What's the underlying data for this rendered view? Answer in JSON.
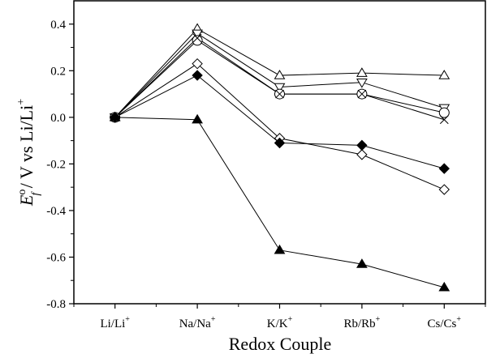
{
  "chart_data": {
    "type": "line",
    "categories": [
      "Li/Li+",
      "Na/Na+",
      "K/K+",
      "Rb/Rb+",
      "Cs/Cs+"
    ],
    "category_labels": [
      {
        "base": "Li/Li",
        "sup": "+"
      },
      {
        "base": "Na/Na",
        "sup": "+"
      },
      {
        "base": "K/K",
        "sup": "+"
      },
      {
        "base": "Rb/Rb",
        "sup": "+"
      },
      {
        "base": "Cs/Cs",
        "sup": "+"
      }
    ],
    "xlabel": "Redox Couple",
    "ylabel": {
      "E": "E",
      "sup": "o",
      "sub": "f",
      "rest": " / V vs Li/Li",
      "rest_sup": "+"
    },
    "ylim": [
      -0.8,
      0.5
    ],
    "yticks": [
      -0.8,
      -0.6,
      -0.4,
      -0.2,
      0.0,
      0.2,
      0.4
    ],
    "ytick_labels": [
      "-0.8",
      "-0.6",
      "-0.4",
      "-0.2",
      "0.0",
      "0.2",
      "0.4"
    ],
    "grid": false,
    "legend": "none",
    "series": [
      {
        "marker": "triangle-up-open",
        "values": [
          0,
          0.38,
          0.18,
          0.19,
          0.18
        ]
      },
      {
        "marker": "triangle-down-open",
        "values": [
          0,
          0.36,
          0.13,
          0.15,
          0.04
        ]
      },
      {
        "marker": "circle-open",
        "values": [
          0,
          0.33,
          0.1,
          0.1,
          0.02
        ]
      },
      {
        "marker": "cross",
        "values": [
          0,
          0.34,
          0.1,
          0.1,
          -0.01
        ]
      },
      {
        "marker": "diamond-open",
        "values": [
          0,
          0.23,
          -0.09,
          -0.16,
          -0.31
        ]
      },
      {
        "marker": "diamond-filled",
        "values": [
          0,
          0.18,
          -0.11,
          -0.12,
          -0.22
        ]
      },
      {
        "marker": "triangle-up-filled",
        "values": [
          0,
          -0.01,
          -0.57,
          -0.63,
          -0.73
        ]
      }
    ],
    "colors": {
      "line": "#000000",
      "background": "#ffffff"
    }
  }
}
